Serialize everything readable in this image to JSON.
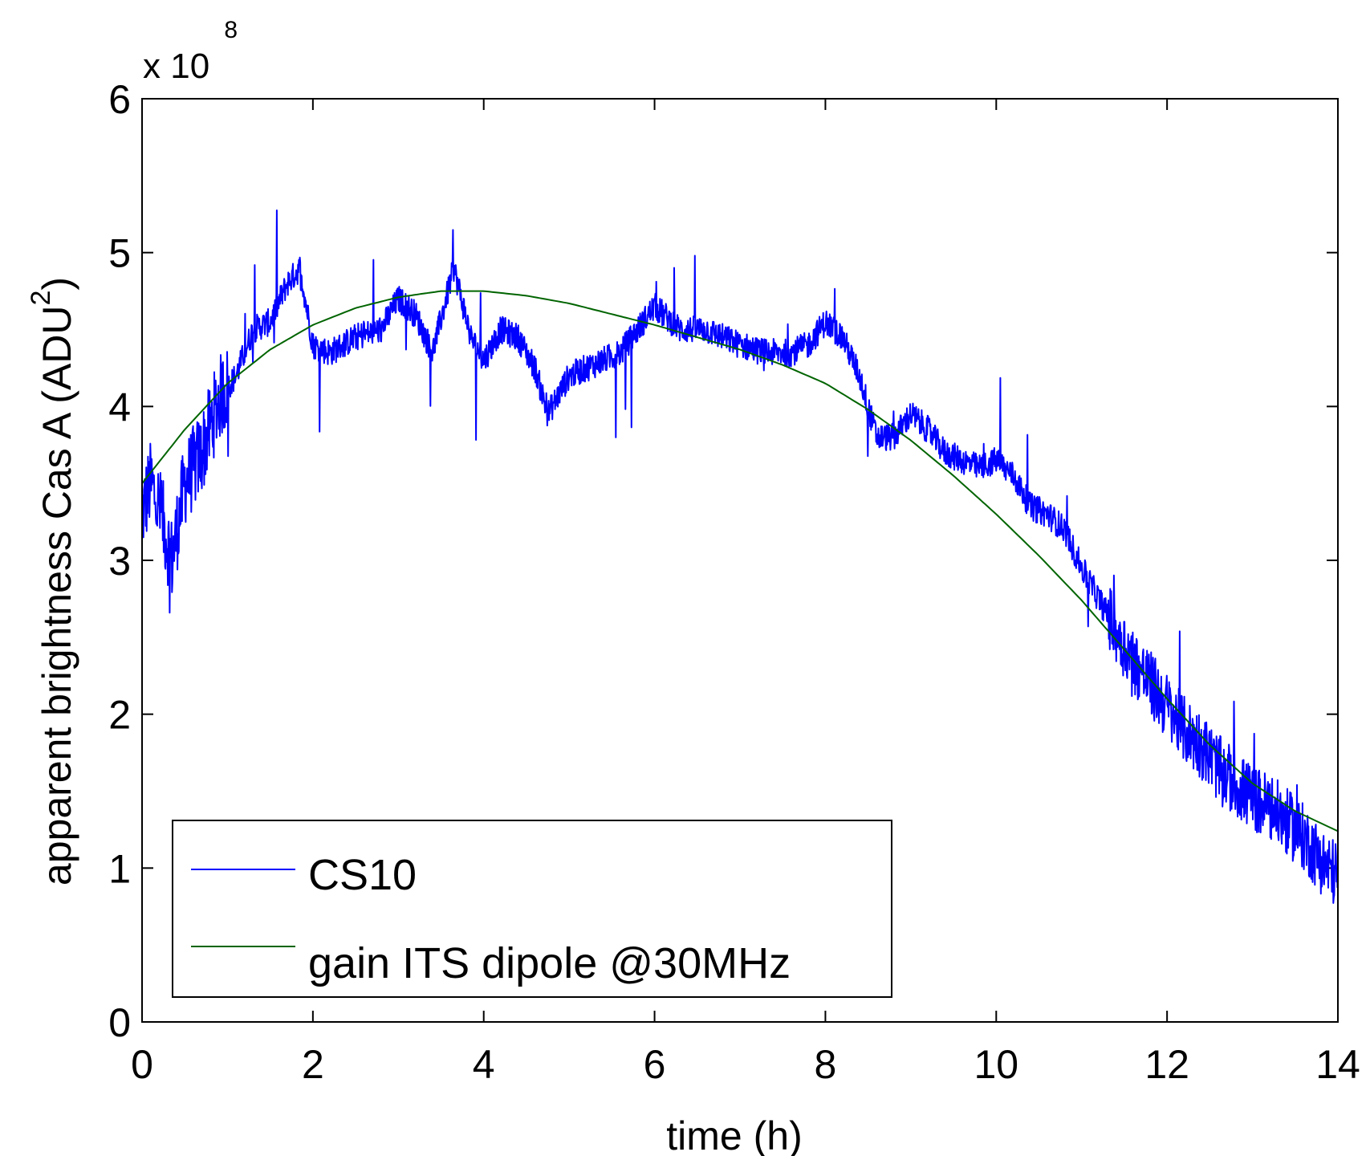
{
  "chart_data": {
    "type": "line",
    "xlabel": "time (h)",
    "ylabel": "apparent brightness Cas A (ADU",
    "ylabel_sup": "2",
    "ylabel_close": ")",
    "y_multiplier_base": "x 10",
    "y_multiplier_exp": "8",
    "xlim": [
      0,
      14
    ],
    "ylim": [
      0,
      6
    ],
    "x_ticks": [
      0,
      2,
      4,
      6,
      8,
      10,
      12,
      14
    ],
    "y_ticks": [
      0,
      1,
      2,
      3,
      4,
      5,
      6
    ],
    "grid": false,
    "legend_position": "bottom-left",
    "series": [
      {
        "name": "CS10",
        "color": "#0000ff",
        "noisy": true,
        "x": [
          0,
          0.1,
          0.2,
          0.35,
          0.5,
          0.7,
          0.9,
          1.1,
          1.3,
          1.5,
          1.7,
          1.85,
          2.0,
          2.2,
          2.5,
          2.8,
          3.0,
          3.2,
          3.4,
          3.65,
          3.85,
          4.0,
          4.2,
          4.4,
          4.6,
          4.75,
          5.0,
          5.2,
          5.4,
          5.6,
          5.8,
          6.0,
          6.3,
          6.6,
          7.0,
          7.3,
          7.6,
          7.8,
          8.0,
          8.2,
          8.4,
          8.6,
          8.8,
          9.0,
          9.2,
          9.4,
          9.6,
          9.8,
          10.0,
          10.2,
          10.4,
          10.6,
          10.8,
          11.0,
          11.2,
          11.4,
          11.6,
          11.8,
          12.0,
          12.2,
          12.4,
          12.6,
          12.8,
          13.0,
          13.2,
          13.4,
          13.6,
          13.8,
          14.0
        ],
        "y": [
          3.3,
          3.5,
          3.35,
          3.0,
          3.5,
          3.7,
          4.05,
          4.2,
          4.5,
          4.55,
          4.8,
          4.9,
          4.4,
          4.35,
          4.45,
          4.5,
          4.7,
          4.6,
          4.35,
          4.9,
          4.45,
          4.3,
          4.5,
          4.45,
          4.25,
          3.95,
          4.2,
          4.25,
          4.3,
          4.35,
          4.5,
          4.65,
          4.5,
          4.5,
          4.4,
          4.35,
          4.35,
          4.4,
          4.55,
          4.45,
          4.2,
          3.8,
          3.8,
          3.95,
          3.85,
          3.7,
          3.65,
          3.6,
          3.65,
          3.55,
          3.35,
          3.3,
          3.2,
          2.95,
          2.75,
          2.55,
          2.35,
          2.2,
          2.05,
          1.9,
          1.8,
          1.65,
          1.55,
          1.45,
          1.4,
          1.3,
          1.2,
          1.05,
          0.95
        ]
      },
      {
        "name": "gain ITS dipole @30MHz",
        "color": "#006400",
        "noisy": false,
        "x": [
          0,
          0.5,
          1,
          1.5,
          2,
          2.5,
          3,
          3.5,
          4,
          4.5,
          5,
          5.5,
          6,
          6.5,
          7,
          7.5,
          8,
          8.5,
          9,
          9.5,
          10,
          10.5,
          11,
          11.5,
          12,
          12.5,
          13,
          13.5,
          14
        ],
        "y": [
          3.5,
          3.85,
          4.15,
          4.37,
          4.53,
          4.64,
          4.71,
          4.75,
          4.75,
          4.72,
          4.67,
          4.6,
          4.53,
          4.45,
          4.37,
          4.27,
          4.15,
          3.98,
          3.78,
          3.55,
          3.3,
          3.03,
          2.74,
          2.42,
          2.1,
          1.8,
          1.55,
          1.37,
          1.24
        ]
      }
    ]
  }
}
